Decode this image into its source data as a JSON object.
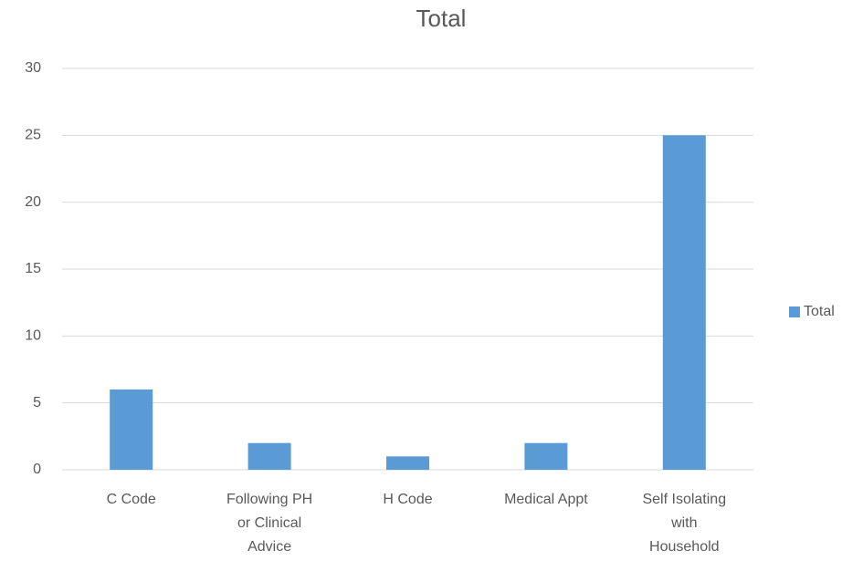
{
  "chart_data": {
    "type": "bar",
    "title": "Total",
    "categories": [
      "C Code",
      "Following PH or Clinical Advice",
      "H Code",
      "Medical Appt",
      "Self Isolating with Household"
    ],
    "series": [
      {
        "name": "Total",
        "color": "#5b9bd5",
        "values": [
          6,
          2,
          1,
          2,
          25
        ]
      }
    ],
    "ylim": [
      0,
      30
    ],
    "yticks": [
      0,
      5,
      10,
      15,
      20,
      25,
      30
    ],
    "grid": true,
    "legend": "right"
  }
}
